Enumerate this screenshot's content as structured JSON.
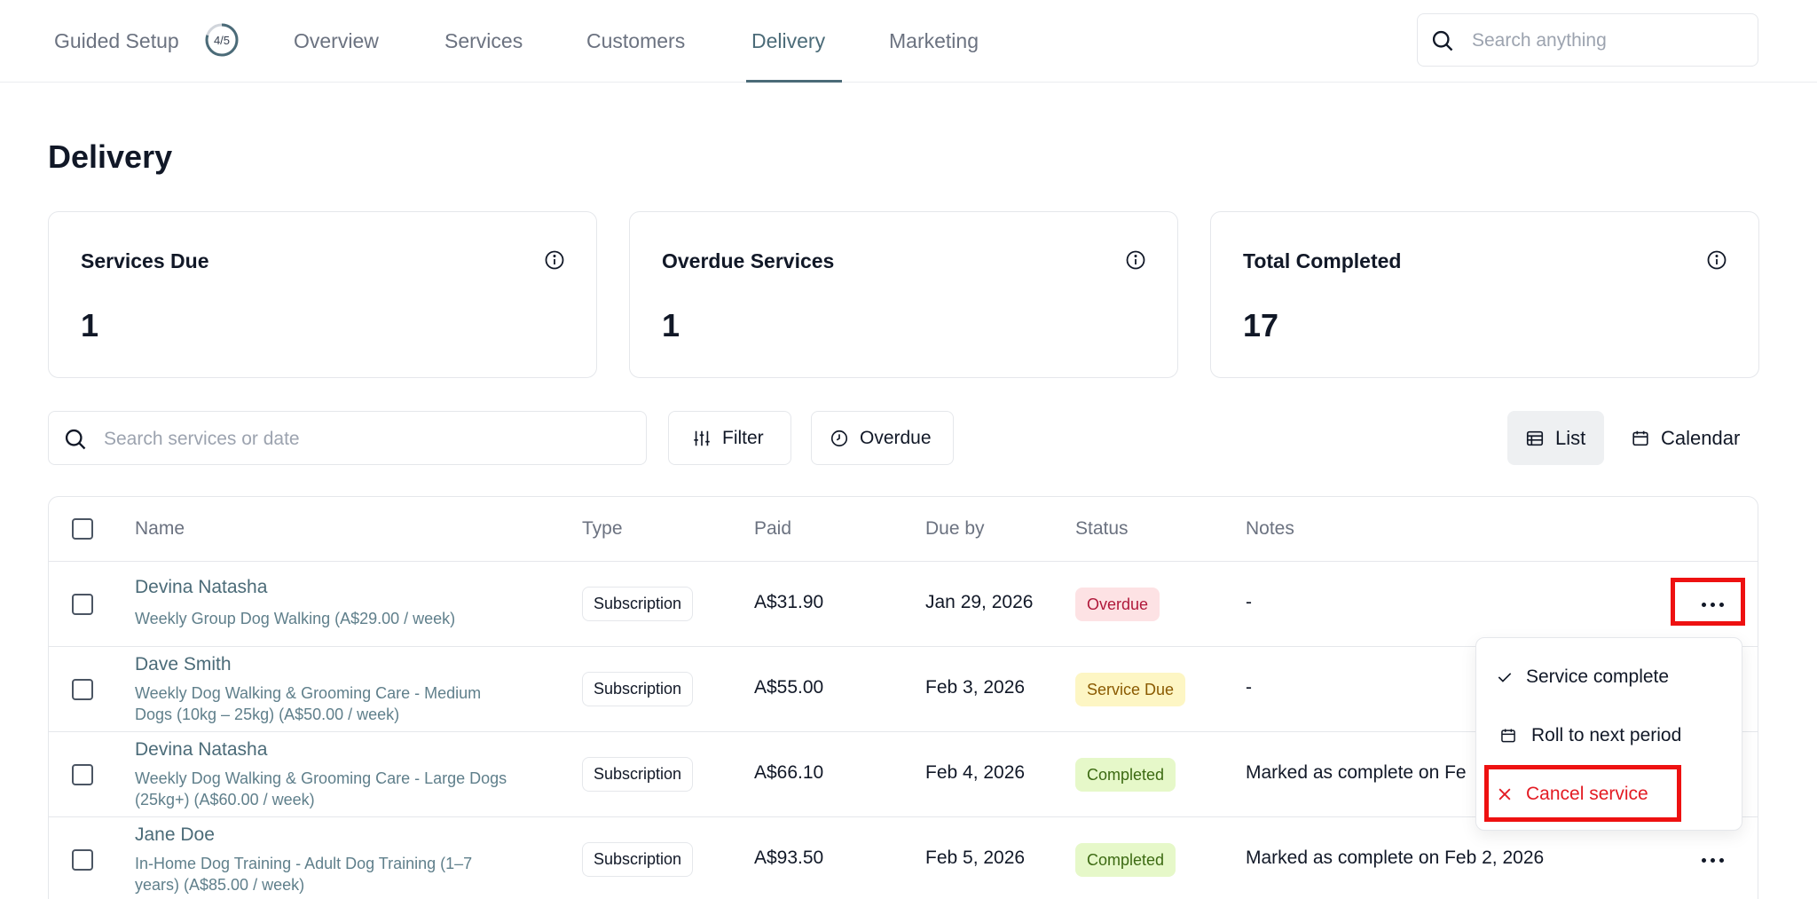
{
  "nav": {
    "guided_setup": "Guided Setup",
    "progress": "4/5",
    "tabs": [
      {
        "label": "Overview"
      },
      {
        "label": "Services"
      },
      {
        "label": "Customers"
      },
      {
        "label": "Delivery"
      },
      {
        "label": "Marketing"
      }
    ],
    "active_tab": "Delivery",
    "search_placeholder": "Search anything"
  },
  "page": {
    "title": "Delivery"
  },
  "cards": [
    {
      "label": "Services Due",
      "value": "1"
    },
    {
      "label": "Overdue Services",
      "value": "1"
    },
    {
      "label": "Total Completed",
      "value": "17"
    }
  ],
  "toolbar": {
    "search_placeholder": "Search services or date",
    "filter": "Filter",
    "overdue": "Overdue",
    "list": "List",
    "calendar": "Calendar"
  },
  "table": {
    "columns": [
      "Name",
      "Type",
      "Paid",
      "Due by",
      "Status",
      "Notes"
    ],
    "rows": [
      {
        "name": "Devina Natasha",
        "sub1": "Weekly Group Dog Walking (A$29.00 / week)",
        "sub2": "",
        "type": "Subscription",
        "paid": "A$31.90",
        "due": "Jan 29, 2026",
        "status": "Overdue",
        "notes": "-"
      },
      {
        "name": "Dave Smith",
        "sub1": "Weekly Dog Walking & Grooming Care - Medium",
        "sub2": "Dogs (10kg – 25kg) (A$50.00 / week)",
        "type": "Subscription",
        "paid": "A$55.00",
        "due": "Feb 3, 2026",
        "status": "Service Due",
        "notes": "-"
      },
      {
        "name": "Devina Natasha",
        "sub1": "Weekly Dog Walking & Grooming Care - Large Dogs",
        "sub2": "(25kg+) (A$60.00 / week)",
        "type": "Subscription",
        "paid": "A$66.10",
        "due": "Feb 4, 2026",
        "status": "Completed",
        "notes": "Marked as complete on Fe"
      },
      {
        "name": "Jane Doe",
        "sub1": "In-Home Dog Training - Adult Dog Training (1–7",
        "sub2": "years) (A$85.00 / week)",
        "type": "Subscription",
        "paid": "A$93.50",
        "due": "Feb 5, 2026",
        "status": "Completed",
        "notes": "Marked as complete on Feb 2, 2026"
      }
    ]
  },
  "menu": {
    "items": [
      {
        "label": "Service complete",
        "icon": "check-icon"
      },
      {
        "label": "Roll to next period",
        "icon": "calendar-icon"
      },
      {
        "label": "Cancel service",
        "icon": "x-icon",
        "color": "#e31b23"
      }
    ]
  },
  "colors": {
    "accent": "#4b6b78",
    "highlight": "#ee1111",
    "overdue_bg": "#fde2e4",
    "due_bg": "#fdf6c4",
    "completed_bg": "#e6f8c9"
  }
}
